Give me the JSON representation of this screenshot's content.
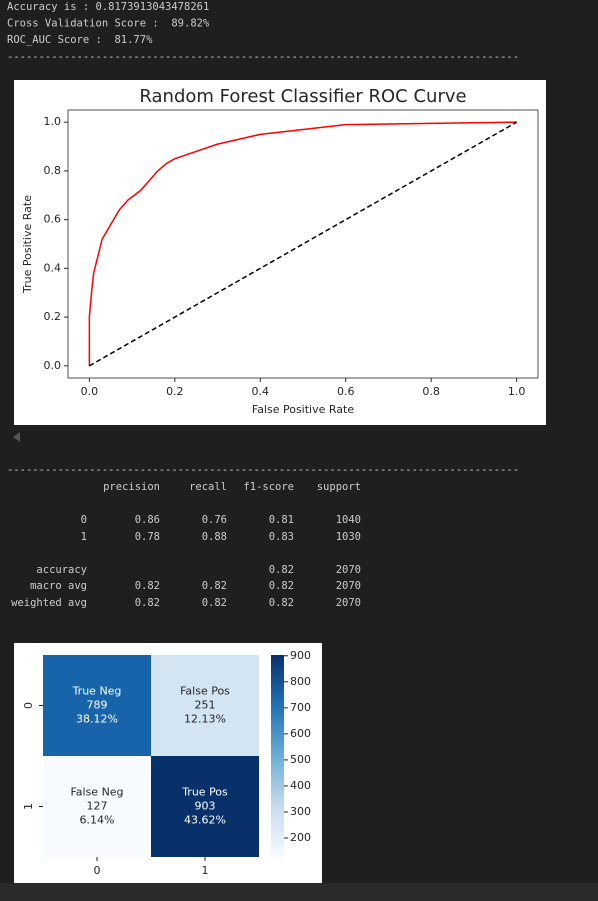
{
  "output_lines": [
    "Accuracy is : 0.8173913043478261",
    "Cross Validation Score :  89.82%",
    "ROC_AUC Score :  81.77%"
  ],
  "separator": "---------------------------------------------------------------------------------",
  "report": {
    "header": [
      "precision",
      "recall",
      "f1-score",
      "support"
    ],
    "rows": [
      [
        "0",
        "0.86",
        "0.76",
        "0.81",
        "1040"
      ],
      [
        "1",
        "0.78",
        "0.88",
        "0.83",
        "1030"
      ],
      [
        "accuracy",
        null,
        null,
        "0.82",
        "2070"
      ],
      [
        "macro avg",
        "0.82",
        "0.82",
        "0.82",
        "2070"
      ],
      [
        "weighted avg",
        "0.82",
        "0.82",
        "0.82",
        "2070"
      ]
    ]
  },
  "chart_data": [
    {
      "type": "line",
      "title": "Random Forest Classifier ROC Curve",
      "xlabel": "False Positive Rate",
      "ylabel": "True Positive Rate",
      "xlim": [
        -0.05,
        1.05
      ],
      "ylim": [
        -0.05,
        1.05
      ],
      "xticks": [
        {
          "value": 0,
          "label": "0.0"
        },
        0.2,
        0.4,
        0.6,
        0.8,
        {
          "value": 1,
          "label": "1.0"
        }
      ],
      "yticks": [
        {
          "value": 0,
          "label": "0.0"
        },
        0.2,
        0.4,
        0.6,
        0.8,
        {
          "value": 1,
          "label": "1.0"
        }
      ],
      "series": [
        {
          "color": "#ff0000",
          "linestyle": "solid",
          "x": [
            0,
            0,
            0.005,
            0.01,
            0.02,
            0.03,
            0.05,
            0.07,
            0.09,
            0.12,
            0.14,
            0.16,
            0.18,
            0.2,
            0.25,
            0.3,
            0.35,
            0.4,
            0.5,
            0.6,
            0.8,
            1
          ],
          "values": [
            0,
            0.2,
            0.3,
            0.38,
            0.45,
            0.52,
            0.58,
            0.64,
            0.68,
            0.72,
            0.76,
            0.8,
            0.83,
            0.85,
            0.88,
            0.91,
            0.93,
            0.95,
            0.97,
            0.99,
            0.995,
            1
          ]
        },
        {
          "color": "#000000",
          "linestyle": "dashed",
          "x": [
            0,
            1
          ],
          "values": [
            0,
            1
          ]
        }
      ]
    },
    {
      "type": "heatmap",
      "xcategories": [
        "0",
        "1"
      ],
      "ycategories": [
        "0",
        "1"
      ],
      "values": [
        [
          789,
          251
        ],
        [
          127,
          903
        ]
      ],
      "cell_names": [
        [
          "True Neg",
          "False Pos"
        ],
        [
          "False Neg",
          "True Pos"
        ]
      ],
      "cell_percent_labels": [
        [
          "38.12%",
          "12.13%"
        ],
        [
          "6.14%",
          "43.62%"
        ]
      ],
      "cell_colors": [
        [
          "#1764ab",
          "#d3e4f3"
        ],
        [
          "#f7fbff",
          "#08306b"
        ]
      ],
      "text_colors": [
        [
          "#ffffff",
          "#262626"
        ],
        [
          "#262626",
          "#ffffff"
        ]
      ],
      "clim": [
        127,
        903
      ],
      "cticks": [
        200,
        300,
        400,
        500,
        600,
        700,
        800,
        900
      ]
    }
  ]
}
